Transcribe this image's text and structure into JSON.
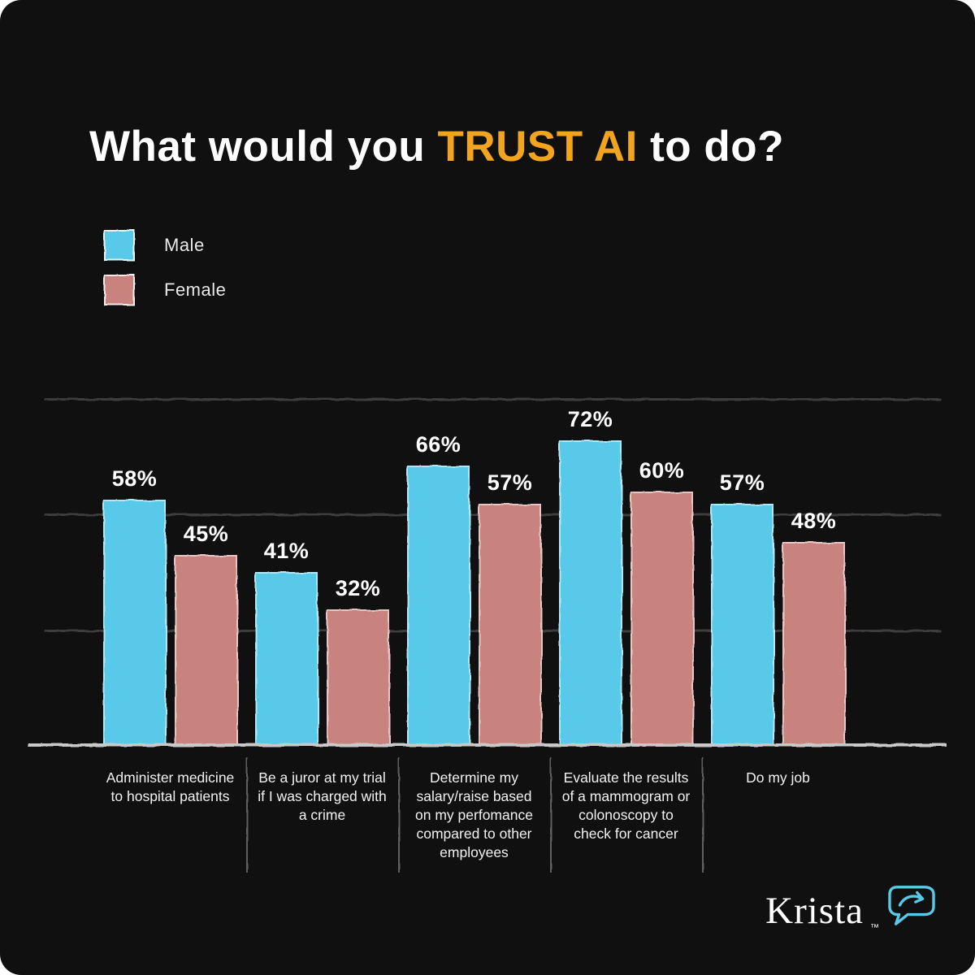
{
  "title": {
    "prefix": "What would you ",
    "highlight": "TRUST AI",
    "suffix": " to do?"
  },
  "colors": {
    "background": "#101010",
    "accent": "#F2A41E",
    "male": "#59C9E8",
    "female": "#C8837F",
    "grid": "#3C3C3C",
    "axis": "#C9C9C9",
    "text": "#FFFFFF"
  },
  "legend": [
    {
      "label": "Male",
      "color": "#59C9E8"
    },
    {
      "label": "Female",
      "color": "#C8837F"
    }
  ],
  "chart_data": {
    "type": "bar",
    "title": "What would you TRUST AI to do?",
    "categories": [
      "Administer medicine to hospital patients",
      "Be a juror at my trial if I was charged with a crime",
      "Determine my salary/raise based on my perfomance compared to other employees",
      "Evaluate the results of a mammogram or colonoscopy to check for cancer",
      "Do my job"
    ],
    "series": [
      {
        "name": "Male",
        "values": [
          58,
          41,
          66,
          72,
          57
        ]
      },
      {
        "name": "Female",
        "values": [
          45,
          32,
          57,
          60,
          48
        ]
      }
    ],
    "value_suffix": "%",
    "xlabel": "",
    "ylabel": "",
    "ylim": [
      0,
      82
    ],
    "grid": true,
    "gridline_count": 4,
    "legend_position": "top-left"
  },
  "logo": {
    "text": "Krista",
    "tm": "™",
    "icon": "speech-bubble-arrow-icon",
    "icon_color": "#59C9E8"
  }
}
